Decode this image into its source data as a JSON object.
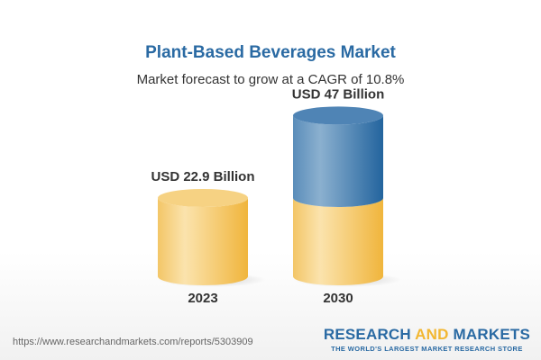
{
  "title": "Plant-Based Beverages Market",
  "subtitle": "Market forecast to grow at a CAGR of 10.8%",
  "chart_data": {
    "type": "bar",
    "style": "3d-cylinder",
    "categories": [
      "2023",
      "2030"
    ],
    "values": [
      22.9,
      47
    ],
    "unit": "USD Billion",
    "data_labels": [
      "USD 22.9 Billion",
      "USD 47 Billion"
    ],
    "colors": {
      "base": "#f2c35a",
      "growth": "#2f6fa6"
    }
  },
  "footer": {
    "url": "https://www.researchandmarkets.com/reports/5303909",
    "logo_part1": "RESEARCH ",
    "logo_part2": "AND",
    "logo_part3": " MARKETS",
    "tagline": "THE WORLD'S LARGEST MARKET RESEARCH STORE"
  }
}
